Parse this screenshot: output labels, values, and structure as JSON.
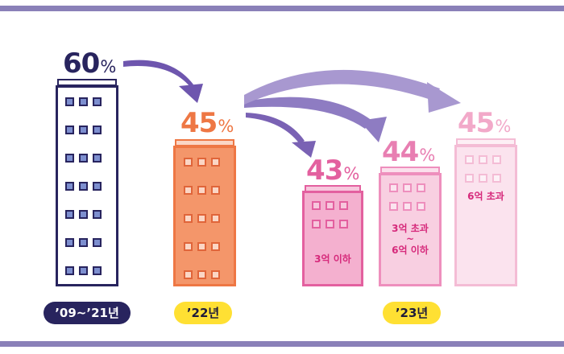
{
  "colors": {
    "band": "#8a80b8",
    "navy": "#28245e",
    "orange": "#ee7744",
    "pink": "#e3609f",
    "pink_light": "#f0a6c8",
    "arrow": "#7a62b4",
    "pill_yellow": "#ffe033"
  },
  "buildings": [
    {
      "id": "b2009",
      "percent": "60",
      "unit": "%",
      "label": ""
    },
    {
      "id": "b2022",
      "percent": "45",
      "unit": "%",
      "label": ""
    },
    {
      "id": "b2023a",
      "percent": "43",
      "unit": "%",
      "label": "3억 이하"
    },
    {
      "id": "b2023b",
      "percent": "44",
      "unit": "%",
      "label_line1": "3억 초과",
      "label_line2": "~",
      "label_line3": "6억 이하"
    },
    {
      "id": "b2023c",
      "percent": "45",
      "unit": "%",
      "label": "6억 초과"
    }
  ],
  "periods": [
    {
      "label": "’09~’21년"
    },
    {
      "label": "’22년"
    },
    {
      "label": "’23년"
    }
  ]
}
